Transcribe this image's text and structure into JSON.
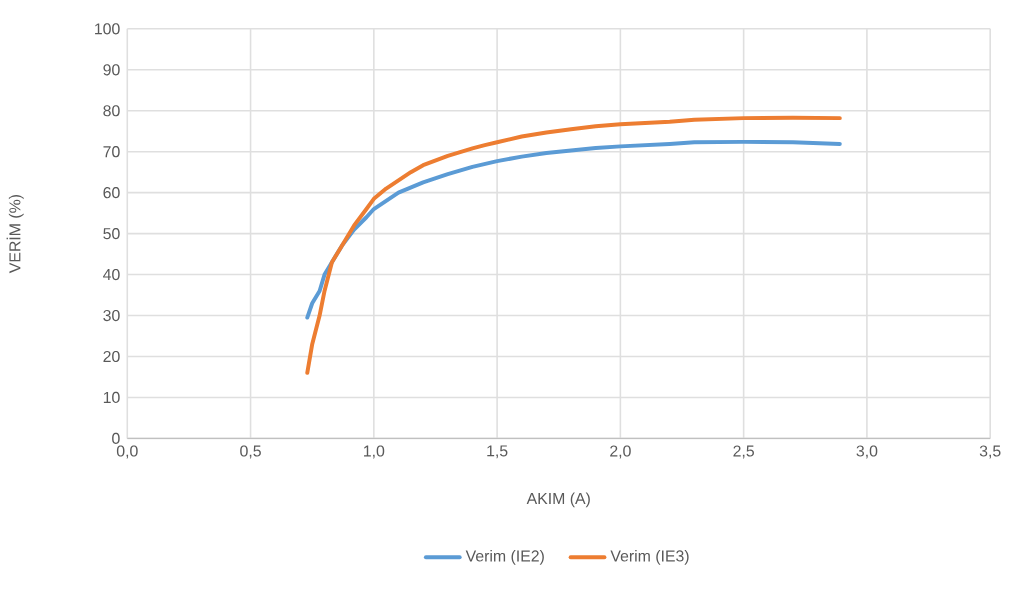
{
  "chart_data": {
    "type": "line",
    "xlabel": "AKIM (A)",
    "ylabel": "VERİM (%)",
    "xlim": [
      0,
      3.5
    ],
    "ylim": [
      0,
      100
    ],
    "xticks": [
      {
        "value": 0,
        "label": "0,0"
      },
      {
        "value": 0.5,
        "label": "0,5"
      },
      {
        "value": 1,
        "label": "1,0"
      },
      {
        "value": 1.5,
        "label": "1,5"
      },
      {
        "value": 2,
        "label": "2,0"
      },
      {
        "value": 2.5,
        "label": "2,5"
      },
      {
        "value": 3,
        "label": "3,0"
      },
      {
        "value": 3.5,
        "label": "3,5"
      }
    ],
    "yticks": [
      0,
      10,
      20,
      30,
      40,
      50,
      60,
      70,
      80,
      90,
      100
    ],
    "grid": true,
    "legend": "bottom",
    "marker": "none",
    "line_style": "solid",
    "series": [
      {
        "name": "Verim (IE2)",
        "color": "#5b9bd5",
        "x": [
          0.73,
          0.75,
          0.78,
          0.8,
          0.83,
          0.87,
          0.92,
          0.97,
          1.0,
          1.1,
          1.2,
          1.3,
          1.4,
          1.5,
          1.6,
          1.7,
          1.8,
          1.9,
          2.0,
          2.2,
          2.3,
          2.5,
          2.7,
          2.89
        ],
        "values": [
          29.5,
          33,
          36,
          40,
          43,
          47,
          51,
          54,
          56,
          60,
          62.5,
          64.5,
          66.3,
          67.7,
          68.8,
          69.7,
          70.3,
          70.9,
          71.3,
          71.9,
          72.3,
          72.4,
          72.3,
          71.9
        ]
      },
      {
        "name": "Verim (IE3)",
        "color": "#ed7d31",
        "x": [
          0.73,
          0.75,
          0.78,
          0.8,
          0.83,
          0.87,
          0.92,
          0.97,
          1.0,
          1.05,
          1.1,
          1.15,
          1.2,
          1.3,
          1.4,
          1.45,
          1.5,
          1.6,
          1.7,
          1.8,
          1.9,
          2.0,
          2.2,
          2.3,
          2.5,
          2.7,
          2.89
        ],
        "values": [
          16,
          23,
          30,
          36,
          43,
          47,
          52,
          56,
          58.5,
          61,
          63,
          65,
          66.7,
          69,
          70.8,
          71.6,
          72.3,
          73.7,
          74.7,
          75.5,
          76.2,
          76.7,
          77.3,
          77.8,
          78.2,
          78.3,
          78.2
        ]
      }
    ]
  }
}
